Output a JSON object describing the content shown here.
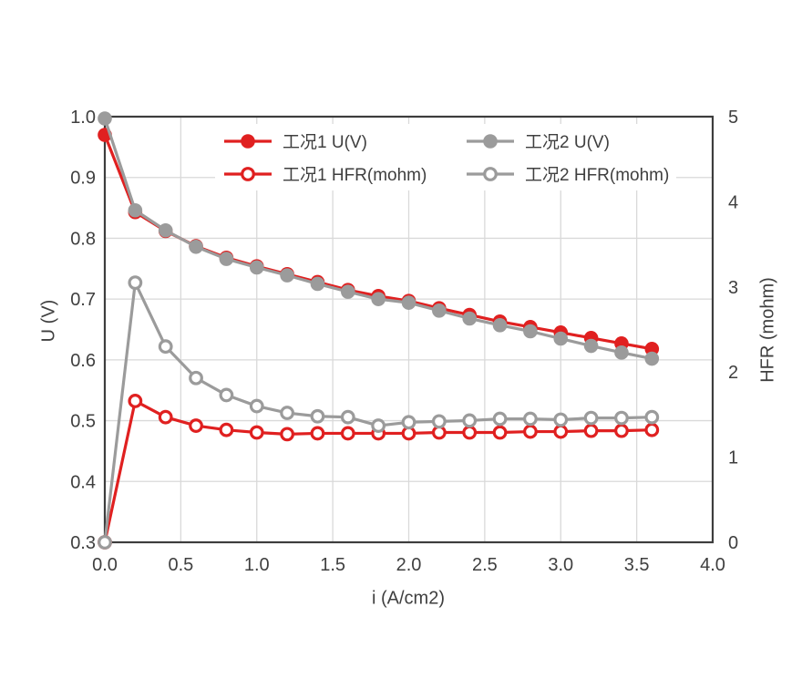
{
  "figure": {
    "background": "#ffffff",
    "frame_color": "#3d3d3d",
    "grid_color": "#d9d9d9",
    "text_color": "#3f3f3f",
    "accent_red": "#e02020",
    "accent_gray": "#9b9b9b"
  },
  "axes": {
    "x_label": "i (A/cm2)",
    "y_left_label": "U (V)",
    "y_right_label": "HFR (mohm)",
    "x_ticks": [
      "0.0",
      "0.5",
      "1.0",
      "1.5",
      "2.0",
      "2.5",
      "3.0",
      "3.5",
      "4.0"
    ],
    "y_left_ticks": [
      "0.3",
      "0.4",
      "0.5",
      "0.6",
      "0.7",
      "0.8",
      "0.9",
      "1.0"
    ],
    "y_right_ticks": [
      "0",
      "1",
      "2",
      "3",
      "4",
      "5"
    ]
  },
  "chart_data": {
    "type": "line",
    "title": "",
    "xlabel": "i (A/cm2)",
    "ylabel_left": "U (V)",
    "ylabel_right": "HFR (mohm)",
    "xlim": [
      0,
      4
    ],
    "ylim_left": [
      0.3,
      1.0
    ],
    "ylim_right": [
      0,
      5
    ],
    "grid": true,
    "legend_position": "top-center-inside",
    "x": [
      0.0,
      0.2,
      0.4,
      0.6,
      0.8,
      1.0,
      1.2,
      1.4,
      1.6,
      1.8,
      2.0,
      2.2,
      2.4,
      2.6,
      2.8,
      3.0,
      3.2,
      3.4,
      3.6
    ],
    "series": [
      {
        "name": "工况1 U(V)",
        "axis": "left",
        "color": "#e02020",
        "marker": "filled-circle",
        "values": [
          0.97,
          0.843,
          0.812,
          0.787,
          0.768,
          0.754,
          0.741,
          0.728,
          0.715,
          0.705,
          0.697,
          0.685,
          0.674,
          0.663,
          0.654,
          0.645,
          0.636,
          0.627,
          0.618
        ]
      },
      {
        "name": "工况1 HFR(mohm)",
        "axis": "right",
        "color": "#e02020",
        "marker": "open-circle",
        "values": [
          0.0,
          1.66,
          1.47,
          1.37,
          1.32,
          1.29,
          1.27,
          1.28,
          1.28,
          1.28,
          1.28,
          1.29,
          1.29,
          1.29,
          1.3,
          1.3,
          1.31,
          1.31,
          1.32
        ]
      },
      {
        "name": "工况2 U(V)",
        "axis": "left",
        "color": "#9b9b9b",
        "marker": "filled-circle",
        "values": [
          0.997,
          0.846,
          0.813,
          0.786,
          0.766,
          0.752,
          0.739,
          0.725,
          0.712,
          0.7,
          0.694,
          0.681,
          0.668,
          0.657,
          0.647,
          0.635,
          0.623,
          0.612,
          0.602
        ]
      },
      {
        "name": "工况2 HFR(mohm)",
        "axis": "right",
        "color": "#9b9b9b",
        "marker": "open-circle",
        "values": [
          0.0,
          3.05,
          2.3,
          1.93,
          1.73,
          1.6,
          1.52,
          1.48,
          1.47,
          1.37,
          1.41,
          1.42,
          1.43,
          1.45,
          1.45,
          1.44,
          1.46,
          1.46,
          1.47
        ]
      }
    ]
  }
}
